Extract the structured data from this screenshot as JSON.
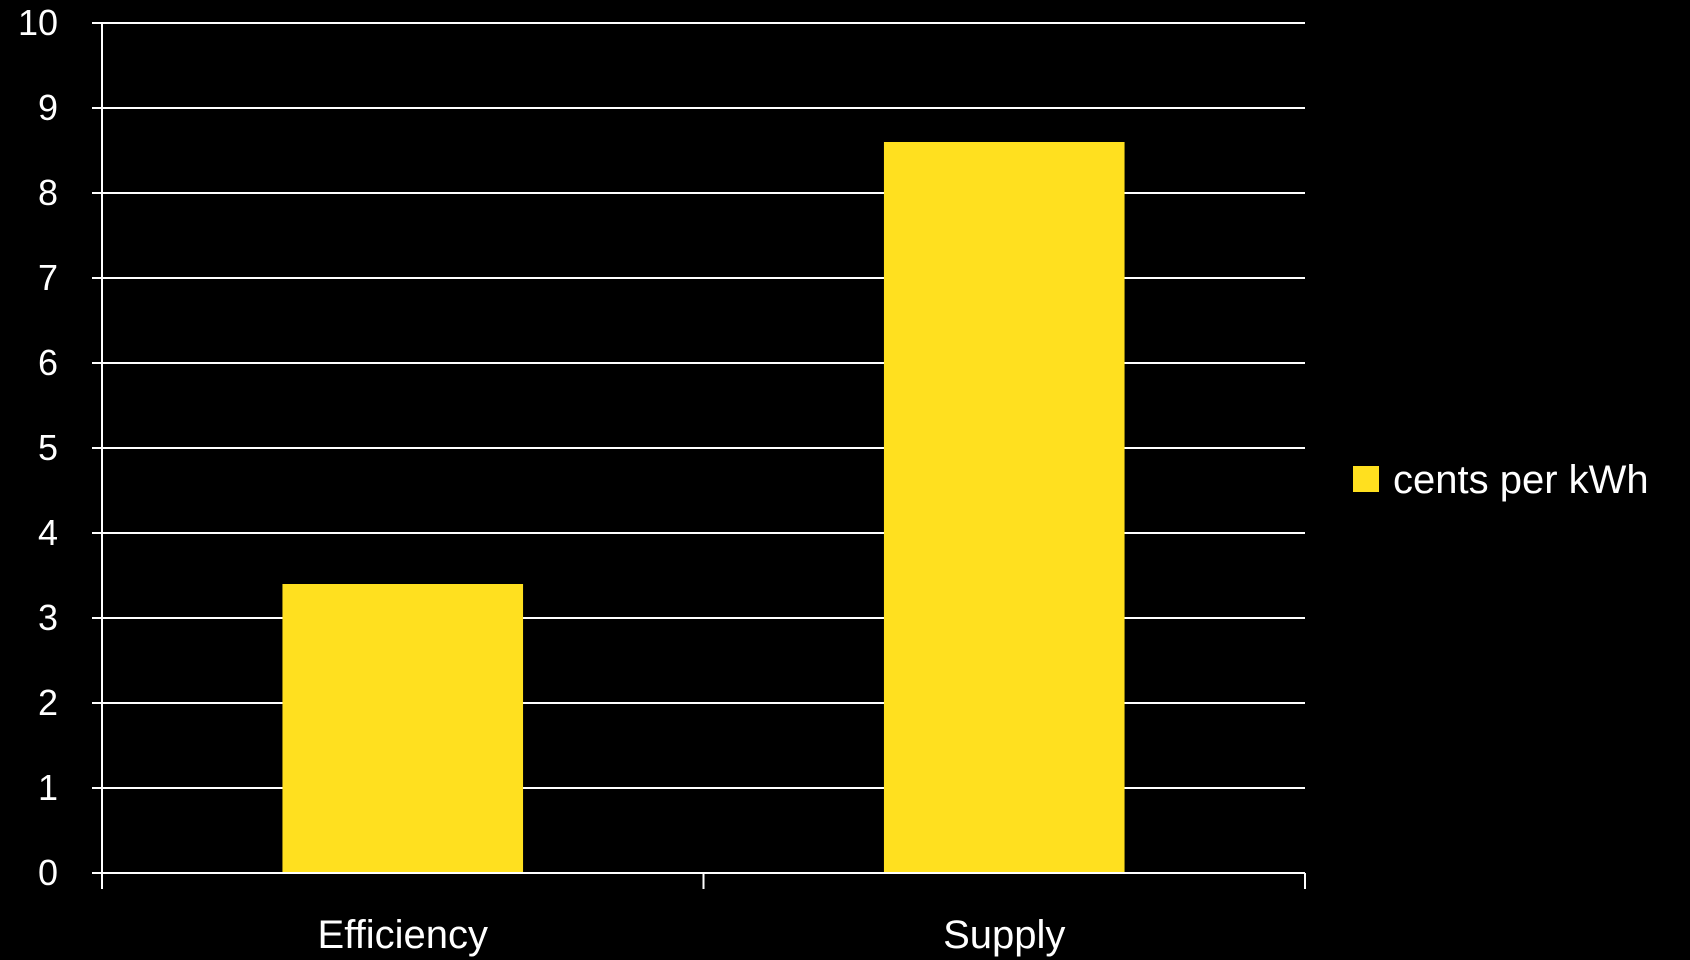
{
  "chart_data": {
    "type": "bar",
    "categories": [
      "Efficiency",
      "Supply"
    ],
    "series": [
      {
        "name": "cents per kWh",
        "values": [
          3.4,
          8.6
        ],
        "color": "#FFE01F"
      }
    ],
    "title": "",
    "xlabel": "",
    "ylabel": "",
    "ylim": [
      0,
      10
    ],
    "yticks": [
      "0",
      "1",
      "2",
      "3",
      "4",
      "5",
      "6",
      "7",
      "8",
      "9",
      "10"
    ],
    "grid": true,
    "legend_position": "right",
    "background": "#000000",
    "axis_color": "#FFFFFF",
    "grid_color": "#FFFFFF"
  }
}
